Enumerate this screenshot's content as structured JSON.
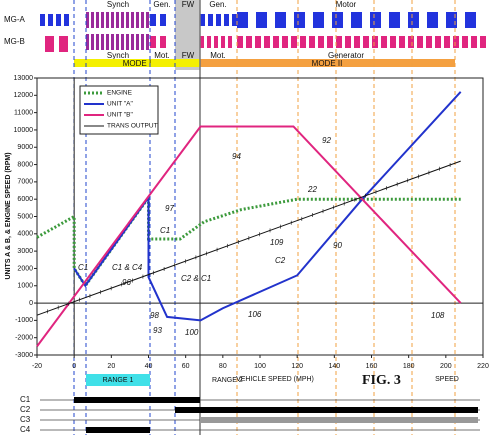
{
  "chart_data": {
    "type": "line",
    "x_label": "VEHICLE SPEED (MPH)",
    "y_label": "UNITS A & B, & ENGINE SPEED (RPM)",
    "fig_label": "FIG. 3",
    "end_label": "SPEED",
    "xlim": [
      -20,
      220
    ],
    "xticks": [
      -20,
      0,
      20,
      40,
      60,
      80,
      100,
      120,
      140,
      160,
      180,
      200,
      220
    ],
    "ylim": [
      -3000,
      13000
    ],
    "yticks": [
      -3000,
      -2000,
      -1000,
      0,
      1000,
      2000,
      3000,
      4000,
      5000,
      6000,
      7000,
      8000,
      9000,
      10000,
      11000,
      12000,
      13000
    ],
    "grid": false,
    "legend": "upper left",
    "series": [
      {
        "name": "ENGINE",
        "color": "#3c9a3c",
        "x": [
          -20,
          0,
          0,
          6,
          40,
          40,
          57,
          70,
          90,
          120,
          208
        ],
        "values": [
          3800,
          5000,
          2000,
          1000,
          6100,
          3700,
          3700,
          4700,
          5400,
          6000,
          6000
        ]
      },
      {
        "name": "UNIT \"A\"",
        "color": "#2233cc",
        "x": [
          0,
          6,
          40,
          40,
          50,
          68,
          80,
          120,
          155,
          208
        ],
        "values": [
          2000,
          1000,
          6100,
          1500,
          -800,
          -1000,
          -300,
          1600,
          6000,
          12200
        ]
      },
      {
        "name": "UNIT \"B\"",
        "color": "#e0257f",
        "x": [
          -20,
          68,
          118,
          155,
          208
        ],
        "values": [
          -2500,
          10200,
          10200,
          6000,
          0
        ]
      },
      {
        "name": "TRANS OUTPUT",
        "color": "#111111",
        "x": [
          -20,
          208
        ],
        "values": [
          -700,
          8200
        ]
      }
    ],
    "annotations": [
      "94",
      "92",
      "22",
      "109",
      "90",
      "C2",
      "97",
      "C1",
      "96",
      "C1 & C4",
      "C1",
      "98",
      "93",
      "100",
      "106",
      "108",
      "C2 & C1"
    ],
    "ranges": [
      "RANGE 1",
      "RANGE 2"
    ]
  },
  "header": {
    "rows": [
      "MG-A",
      "MG-B"
    ],
    "mg_a_phases": [
      "Synch",
      "Gen.",
      "FW",
      "Gen.",
      "Motor"
    ],
    "mg_b_phases": [
      "Synch",
      "Mot.",
      "FW",
      "Mot.",
      "Generator"
    ],
    "modes": [
      "MODE I",
      "MODE II"
    ]
  },
  "clutches": [
    "C1",
    "C2",
    "C3",
    "C4"
  ]
}
